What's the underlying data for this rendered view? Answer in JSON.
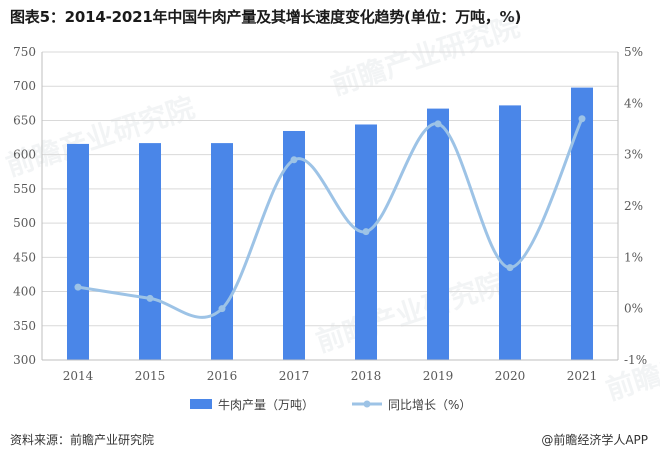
{
  "title": "图表5：2014-2021年中国牛肉产量及其增长速度变化趋势(单位：万吨，%)",
  "footer": {
    "source": "资料来源：前瞻产业研究院",
    "brand": "@前瞻经济学人APP"
  },
  "watermark": "前瞻产业研究院",
  "colors": {
    "bar": "#4A86E8",
    "line": "#9DC3E6",
    "grid": "#D9D9D9"
  },
  "chart_data": {
    "type": "bar",
    "categories": [
      "2014",
      "2015",
      "2016",
      "2017",
      "2018",
      "2019",
      "2020",
      "2021"
    ],
    "series": [
      {
        "name": "牛肉产量（万吨）",
        "type": "bar",
        "axis": "left",
        "values": [
          615.7,
          616.9,
          616.9,
          634.6,
          644.1,
          667.3,
          672.0,
          698.0
        ]
      },
      {
        "name": "同比增长（%）",
        "type": "line",
        "axis": "right",
        "smooth": true,
        "values": [
          0.42,
          0.2,
          0.0,
          2.9,
          1.5,
          3.6,
          0.8,
          3.7
        ]
      }
    ],
    "y_left": {
      "min": 300,
      "max": 750,
      "step": 50,
      "ticks": [
        "300",
        "350",
        "400",
        "450",
        "500",
        "550",
        "600",
        "650",
        "700",
        "750"
      ]
    },
    "y_right": {
      "min": -1,
      "max": 5,
      "step": 1,
      "ticks": [
        "-1%",
        "0%",
        "1%",
        "2%",
        "3%",
        "4%",
        "5%"
      ]
    },
    "grid": true,
    "legend_position": "bottom"
  }
}
